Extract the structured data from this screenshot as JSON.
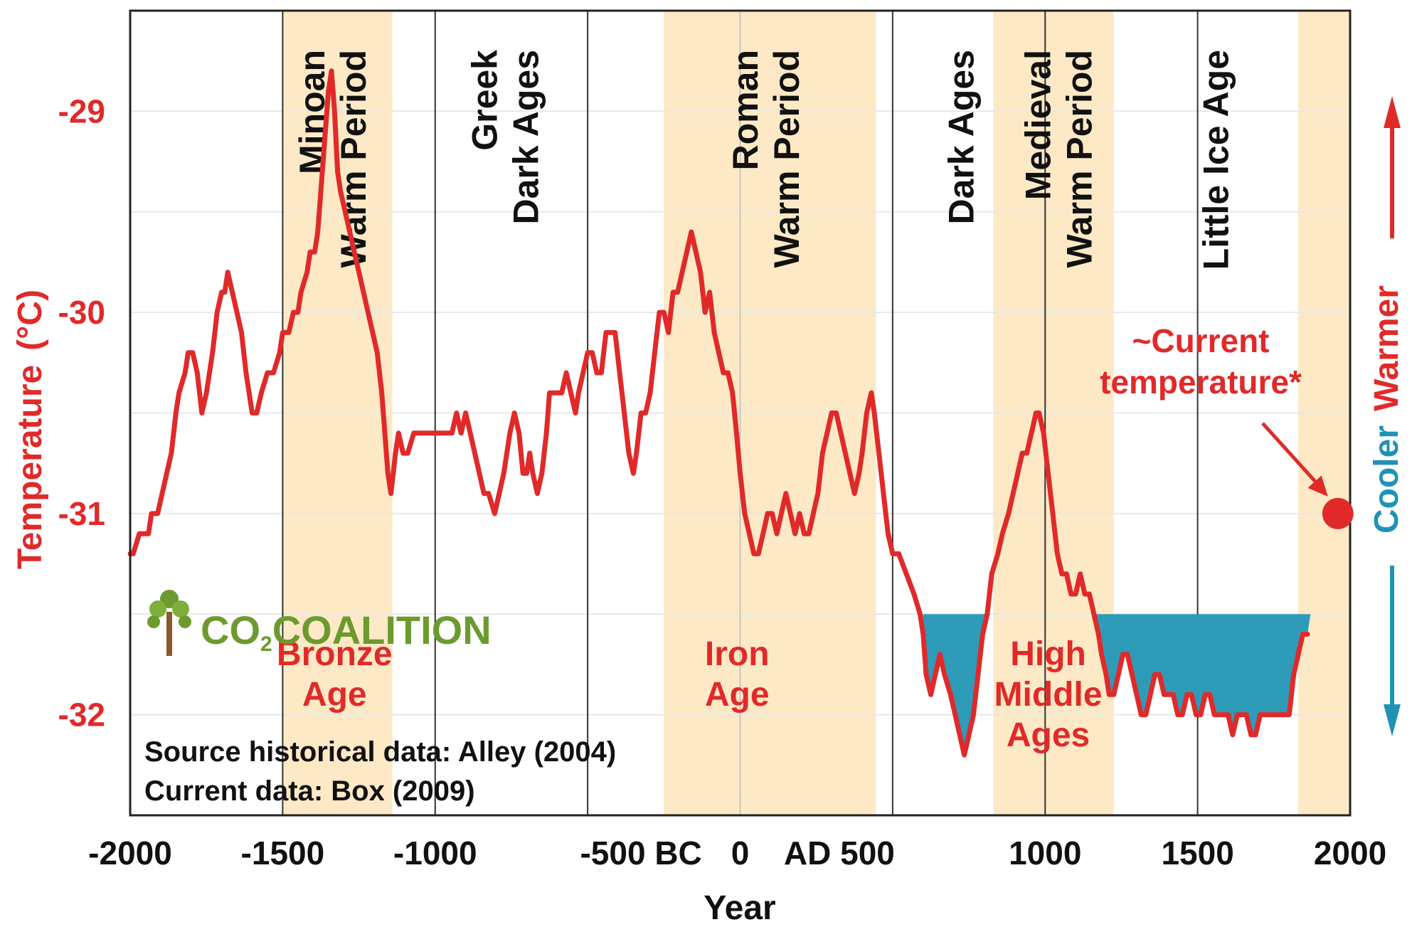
{
  "chart_data": {
    "type": "line",
    "xlabel": "Year",
    "ylabel": "Temperature",
    "ylabel_unit": "(°C)",
    "xlim": [
      -2000,
      2000
    ],
    "ylim": [
      -32.5,
      -28.5
    ],
    "grid": "horizontal",
    "xticks": [
      {
        "v": -2000,
        "label": "-2000"
      },
      {
        "v": -1500,
        "label": "-1500"
      },
      {
        "v": -1000,
        "label": "-1000"
      },
      {
        "v": -500,
        "label": "-500 BC"
      },
      {
        "v": 0,
        "label": "0"
      },
      {
        "v": 500,
        "label": "AD 500"
      },
      {
        "v": 1000,
        "label": "1000"
      },
      {
        "v": 1500,
        "label": "1500"
      },
      {
        "v": 2000,
        "label": "2000"
      }
    ],
    "yticks": [
      {
        "v": -29,
        "label": "-29"
      },
      {
        "v": -30,
        "label": "-30"
      },
      {
        "v": -31,
        "label": "-31"
      },
      {
        "v": -32,
        "label": "-32"
      }
    ],
    "shaded_periods": [
      {
        "start": -1500,
        "end": -1140
      },
      {
        "start": -250,
        "end": 445
      },
      {
        "start": 830,
        "end": 1225
      },
      {
        "start": 1830,
        "end": 2000
      }
    ],
    "period_labels": [
      {
        "lines": [
          "Minoan",
          "Warm Period"
        ],
        "x": -1335
      },
      {
        "lines": [
          "Greek",
          "Dark Ages"
        ],
        "x": -770
      },
      {
        "lines": [
          "Roman",
          "Warm Period"
        ],
        "x": 85
      },
      {
        "lines": [
          "Dark Ages"
        ],
        "x": 725
      },
      {
        "lines": [
          "Medieval",
          "Warm Period"
        ],
        "x": 1045
      },
      {
        "lines": [
          "Little Ice Age"
        ],
        "x": 1560
      }
    ],
    "age_labels": [
      {
        "lines": [
          "Bronze",
          "Age"
        ],
        "x": -1330
      },
      {
        "lines": [
          "Iron",
          "Age"
        ],
        "x": -10
      },
      {
        "lines": [
          "High",
          "Middle",
          "Ages"
        ],
        "x": 1010
      }
    ],
    "series": [
      {
        "color": "#e02a2a",
        "points": [
          [
            -2000,
            -31.2
          ],
          [
            -1990,
            -31.2
          ],
          [
            -1970,
            -31.1
          ],
          [
            -1950,
            -31.1
          ],
          [
            -1940,
            -31.1
          ],
          [
            -1930,
            -31.0
          ],
          [
            -1920,
            -31.0
          ],
          [
            -1910,
            -31.0
          ],
          [
            -1895,
            -30.9
          ],
          [
            -1880,
            -30.8
          ],
          [
            -1865,
            -30.7
          ],
          [
            -1850,
            -30.5
          ],
          [
            -1840,
            -30.4
          ],
          [
            -1820,
            -30.3
          ],
          [
            -1810,
            -30.2
          ],
          [
            -1795,
            -30.2
          ],
          [
            -1780,
            -30.3
          ],
          [
            -1765,
            -30.5
          ],
          [
            -1750,
            -30.4
          ],
          [
            -1730,
            -30.2
          ],
          [
            -1715,
            -30.0
          ],
          [
            -1700,
            -29.9
          ],
          [
            -1690,
            -29.9
          ],
          [
            -1680,
            -29.8
          ],
          [
            -1665,
            -29.9
          ],
          [
            -1650,
            -30.0
          ],
          [
            -1635,
            -30.1
          ],
          [
            -1620,
            -30.3
          ],
          [
            -1600,
            -30.5
          ],
          [
            -1585,
            -30.5
          ],
          [
            -1570,
            -30.4
          ],
          [
            -1550,
            -30.3
          ],
          [
            -1530,
            -30.3
          ],
          [
            -1510,
            -30.2
          ],
          [
            -1500,
            -30.1
          ],
          [
            -1480,
            -30.1
          ],
          [
            -1465,
            -30.0
          ],
          [
            -1450,
            -30.0
          ],
          [
            -1440,
            -29.9
          ],
          [
            -1420,
            -29.8
          ],
          [
            -1410,
            -29.7
          ],
          [
            -1395,
            -29.7
          ],
          [
            -1385,
            -29.6
          ],
          [
            -1375,
            -29.4
          ],
          [
            -1360,
            -29.1
          ],
          [
            -1350,
            -28.9
          ],
          [
            -1340,
            -28.8
          ],
          [
            -1330,
            -29.0
          ],
          [
            -1320,
            -29.3
          ],
          [
            -1310,
            -29.4
          ],
          [
            -1295,
            -29.5
          ],
          [
            -1280,
            -29.6
          ],
          [
            -1265,
            -29.7
          ],
          [
            -1250,
            -29.8
          ],
          [
            -1235,
            -29.9
          ],
          [
            -1220,
            -30.0
          ],
          [
            -1205,
            -30.1
          ],
          [
            -1190,
            -30.2
          ],
          [
            -1175,
            -30.4
          ],
          [
            -1165,
            -30.6
          ],
          [
            -1155,
            -30.8
          ],
          [
            -1145,
            -30.9
          ],
          [
            -1130,
            -30.7
          ],
          [
            -1120,
            -30.6
          ],
          [
            -1105,
            -30.7
          ],
          [
            -1090,
            -30.7
          ],
          [
            -1070,
            -30.6
          ],
          [
            -1050,
            -30.6
          ],
          [
            -1030,
            -30.6
          ],
          [
            -1010,
            -30.6
          ],
          [
            -995,
            -30.6
          ],
          [
            -980,
            -30.6
          ],
          [
            -965,
            -30.6
          ],
          [
            -945,
            -30.6
          ],
          [
            -930,
            -30.5
          ],
          [
            -915,
            -30.6
          ],
          [
            -900,
            -30.5
          ],
          [
            -885,
            -30.6
          ],
          [
            -870,
            -30.7
          ],
          [
            -855,
            -30.8
          ],
          [
            -840,
            -30.9
          ],
          [
            -825,
            -30.9
          ],
          [
            -805,
            -31.0
          ],
          [
            -790,
            -30.9
          ],
          [
            -775,
            -30.8
          ],
          [
            -765,
            -30.7
          ],
          [
            -755,
            -30.6
          ],
          [
            -740,
            -30.5
          ],
          [
            -725,
            -30.6
          ],
          [
            -712,
            -30.8
          ],
          [
            -700,
            -30.8
          ],
          [
            -690,
            -30.7
          ],
          [
            -680,
            -30.8
          ],
          [
            -665,
            -30.9
          ],
          [
            -650,
            -30.8
          ],
          [
            -635,
            -30.6
          ],
          [
            -625,
            -30.4
          ],
          [
            -615,
            -30.4
          ],
          [
            -600,
            -30.4
          ],
          [
            -585,
            -30.4
          ],
          [
            -570,
            -30.3
          ],
          [
            -555,
            -30.4
          ],
          [
            -540,
            -30.5
          ],
          [
            -530,
            -30.4
          ],
          [
            -515,
            -30.3
          ],
          [
            -500,
            -30.2
          ],
          [
            -485,
            -30.2
          ],
          [
            -470,
            -30.3
          ],
          [
            -455,
            -30.3
          ],
          [
            -440,
            -30.1
          ],
          [
            -425,
            -30.1
          ],
          [
            -410,
            -30.1
          ],
          [
            -395,
            -30.3
          ],
          [
            -380,
            -30.5
          ],
          [
            -365,
            -30.7
          ],
          [
            -350,
            -30.8
          ],
          [
            -340,
            -30.7
          ],
          [
            -325,
            -30.5
          ],
          [
            -310,
            -30.5
          ],
          [
            -295,
            -30.4
          ],
          [
            -280,
            -30.2
          ],
          [
            -265,
            -30.0
          ],
          [
            -250,
            -30.0
          ],
          [
            -235,
            -30.1
          ],
          [
            -220,
            -29.9
          ],
          [
            -205,
            -29.9
          ],
          [
            -190,
            -29.8
          ],
          [
            -175,
            -29.7
          ],
          [
            -160,
            -29.6
          ],
          [
            -145,
            -29.7
          ],
          [
            -130,
            -29.8
          ],
          [
            -115,
            -30.0
          ],
          [
            -100,
            -29.9
          ],
          [
            -85,
            -30.1
          ],
          [
            -70,
            -30.2
          ],
          [
            -55,
            -30.3
          ],
          [
            -40,
            -30.3
          ],
          [
            -25,
            -30.4
          ],
          [
            -12,
            -30.6
          ],
          [
            0,
            -30.8
          ],
          [
            15,
            -31.0
          ],
          [
            30,
            -31.1
          ],
          [
            45,
            -31.2
          ],
          [
            60,
            -31.2
          ],
          [
            75,
            -31.1
          ],
          [
            90,
            -31.0
          ],
          [
            105,
            -31.0
          ],
          [
            120,
            -31.1
          ],
          [
            135,
            -31.0
          ],
          [
            150,
            -30.9
          ],
          [
            165,
            -31.0
          ],
          [
            180,
            -31.1
          ],
          [
            195,
            -31.0
          ],
          [
            210,
            -31.1
          ],
          [
            225,
            -31.1
          ],
          [
            240,
            -31.0
          ],
          [
            255,
            -30.9
          ],
          [
            270,
            -30.7
          ],
          [
            285,
            -30.6
          ],
          [
            300,
            -30.5
          ],
          [
            315,
            -30.5
          ],
          [
            330,
            -30.6
          ],
          [
            345,
            -30.7
          ],
          [
            360,
            -30.8
          ],
          [
            375,
            -30.9
          ],
          [
            390,
            -30.8
          ],
          [
            400,
            -30.7
          ],
          [
            415,
            -30.5
          ],
          [
            430,
            -30.4
          ],
          [
            440,
            -30.5
          ],
          [
            455,
            -30.7
          ],
          [
            470,
            -30.9
          ],
          [
            485,
            -31.1
          ],
          [
            500,
            -31.2
          ],
          [
            520,
            -31.2
          ],
          [
            545,
            -31.3
          ],
          [
            570,
            -31.4
          ],
          [
            590,
            -31.5
          ],
          [
            600,
            -31.6
          ],
          [
            610,
            -31.8
          ],
          [
            625,
            -31.9
          ],
          [
            640,
            -31.8
          ],
          [
            655,
            -31.7
          ],
          [
            670,
            -31.8
          ],
          [
            690,
            -31.9
          ],
          [
            705,
            -32.0
          ],
          [
            720,
            -32.1
          ],
          [
            735,
            -32.2
          ],
          [
            750,
            -32.1
          ],
          [
            765,
            -32.0
          ],
          [
            780,
            -31.8
          ],
          [
            795,
            -31.6
          ],
          [
            810,
            -31.5
          ],
          [
            825,
            -31.3
          ],
          [
            845,
            -31.2
          ],
          [
            860,
            -31.1
          ],
          [
            880,
            -31.0
          ],
          [
            895,
            -30.9
          ],
          [
            910,
            -30.8
          ],
          [
            925,
            -30.7
          ],
          [
            940,
            -30.7
          ],
          [
            955,
            -30.6
          ],
          [
            970,
            -30.5
          ],
          [
            980,
            -30.5
          ],
          [
            995,
            -30.6
          ],
          [
            1010,
            -30.8
          ],
          [
            1025,
            -31.0
          ],
          [
            1040,
            -31.2
          ],
          [
            1055,
            -31.3
          ],
          [
            1070,
            -31.3
          ],
          [
            1085,
            -31.4
          ],
          [
            1100,
            -31.4
          ],
          [
            1115,
            -31.3
          ],
          [
            1130,
            -31.4
          ],
          [
            1145,
            -31.4
          ],
          [
            1160,
            -31.5
          ],
          [
            1175,
            -31.6
          ],
          [
            1185,
            -31.7
          ],
          [
            1200,
            -31.8
          ],
          [
            1210,
            -31.9
          ],
          [
            1225,
            -31.9
          ],
          [
            1240,
            -31.8
          ],
          [
            1255,
            -31.7
          ],
          [
            1270,
            -31.7
          ],
          [
            1285,
            -31.8
          ],
          [
            1300,
            -31.9
          ],
          [
            1315,
            -32.0
          ],
          [
            1330,
            -32.0
          ],
          [
            1345,
            -31.9
          ],
          [
            1360,
            -31.8
          ],
          [
            1375,
            -31.8
          ],
          [
            1390,
            -31.9
          ],
          [
            1405,
            -31.9
          ],
          [
            1420,
            -31.9
          ],
          [
            1435,
            -32.0
          ],
          [
            1450,
            -32.0
          ],
          [
            1465,
            -31.9
          ],
          [
            1480,
            -31.9
          ],
          [
            1495,
            -32.0
          ],
          [
            1510,
            -32.0
          ],
          [
            1525,
            -31.9
          ],
          [
            1540,
            -31.9
          ],
          [
            1555,
            -32.0
          ],
          [
            1570,
            -32.0
          ],
          [
            1585,
            -32.0
          ],
          [
            1600,
            -32.0
          ],
          [
            1615,
            -32.1
          ],
          [
            1630,
            -32.0
          ],
          [
            1645,
            -32.0
          ],
          [
            1660,
            -32.0
          ],
          [
            1675,
            -32.1
          ],
          [
            1690,
            -32.1
          ],
          [
            1705,
            -32.0
          ],
          [
            1720,
            -32.0
          ],
          [
            1735,
            -32.0
          ],
          [
            1750,
            -32.0
          ],
          [
            1765,
            -32.0
          ],
          [
            1780,
            -32.0
          ],
          [
            1800,
            -32.0
          ],
          [
            1815,
            -31.8
          ],
          [
            1830,
            -31.7
          ],
          [
            1845,
            -31.6
          ],
          [
            1860,
            -31.6
          ]
        ]
      }
    ],
    "fill_below_threshold": {
      "threshold": -31.5,
      "x_start": 600,
      "x_end": 1870,
      "color": "#2e9bb8"
    },
    "highlight_point": {
      "x": 1960,
      "y": -31.0,
      "label_lines": [
        "~Current",
        "temperature*"
      ]
    },
    "right_axis": {
      "warmer": "Warmer",
      "cooler": "Cooler",
      "warm_color": "#e02a2a",
      "cool_color": "#1e93b5"
    },
    "shade_color": "#fde9c5",
    "line_color": "#e02a2a"
  },
  "source_lines": [
    "Source historical data: Alley (2004)",
    "Current data: Box (2009)"
  ],
  "logo": {
    "icon": "tree-icon",
    "text_a": "CO",
    "text_sub": "2",
    "text_b": "COALITION",
    "color": "#6d9a2f"
  }
}
